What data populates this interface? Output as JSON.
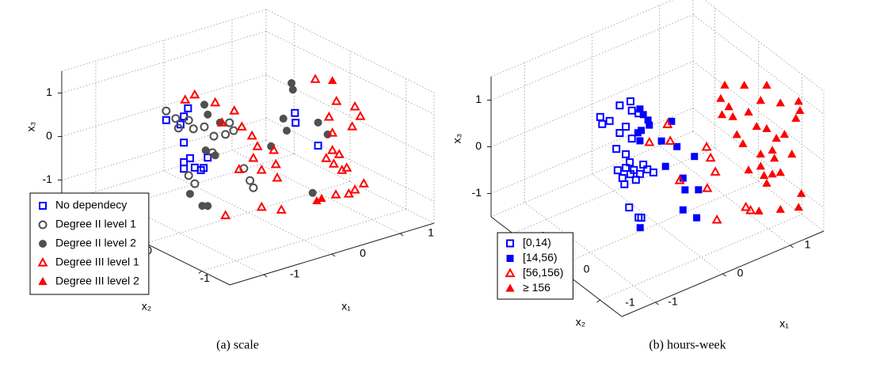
{
  "chart_data": [
    {
      "type": "scatter3d",
      "caption": "(a) scale",
      "xlabel": "x₁",
      "ylabel": "x₂",
      "zlabel": "x₃",
      "xlim": [
        -1.5,
        1.5
      ],
      "ylim": [
        -1.5,
        1.5
      ],
      "zlim": [
        -1.5,
        1.5
      ],
      "xticks": [
        -1,
        0,
        1
      ],
      "yticks": [
        -1,
        0,
        1
      ],
      "zticks": [
        -1,
        0,
        1
      ],
      "grid": true,
      "legend": "lower left",
      "series": [
        {
          "name": "No dependecy",
          "color": "#0000ff",
          "marker": "square",
          "filled": false,
          "x": [
            -1.2,
            -0.88,
            -0.94,
            -0.99,
            -0.94,
            -0.94,
            -0.85,
            -0.78,
            -0.65,
            -0.94,
            -0.59,
            -0.69,
            0.69,
            0.7,
            1.03
          ],
          "y": [
            0,
            0,
            0,
            0,
            0,
            0,
            0,
            0,
            0,
            0,
            0,
            0,
            0,
            0,
            0
          ],
          "z": [
            1.19,
            1.31,
            1.15,
            0.99,
            0.55,
            0.1,
            0.15,
            -0.1,
            -0.17,
            -0.05,
            0.04,
            -0.2,
            0.46,
            0.23,
            -0.45
          ]
        },
        {
          "name": "Degree II level 1",
          "color": "#505050",
          "marker": "circle",
          "filled": false,
          "x": [
            -1.2,
            -1.06,
            -0.87,
            -1.02,
            -0.8,
            -0.64,
            -0.5,
            -0.33,
            -0.27,
            -0.21,
            -0.52,
            -0.06,
            0.03,
            0.08,
            -0.87,
            -0.78
          ],
          "y": [
            0,
            0,
            0,
            0,
            0,
            0,
            0,
            0,
            0,
            0,
            0,
            0,
            0,
            0,
            0,
            0
          ],
          "z": [
            1.4,
            1.16,
            1.03,
            0.92,
            0.8,
            0.77,
            0.49,
            0.45,
            0.69,
            0.48,
            0.12,
            -0.46,
            -0.78,
            -0.97,
            -0.24,
            -0.47
          ]
        },
        {
          "name": "Degree II level 2",
          "color": "#505050",
          "marker": "circle",
          "filled": true,
          "x": [
            -0.64,
            -0.59,
            -0.41,
            -0.62,
            -0.48,
            -0.85,
            -0.67,
            -0.59,
            0.34,
            0.52,
            0.57,
            0.64,
            0.66,
            1.03,
            1.17,
            0.95
          ],
          "y": [
            0,
            0,
            0,
            0,
            0,
            0,
            0,
            0,
            0,
            0,
            0,
            0,
            0,
            0,
            0,
            0
          ],
          "z": [
            1.28,
            1.03,
            0.76,
            0.22,
            0.04,
            -0.67,
            -1.03,
            -1.07,
            -0.14,
            0.41,
            0.11,
            1.17,
            1.01,
            0.08,
            -0.26,
            -1.5
          ]
        },
        {
          "name": "Degree III level 1",
          "color": "#ff0000",
          "marker": "triangle",
          "filled": false,
          "x": [
            -0.51,
            -0.37,
            -0.48,
            -0.2,
            -0.38,
            -0.09,
            0.06,
            0.14,
            0.38,
            0.41,
            0.08,
            -0.13,
            0.2,
            0.43,
            -0.21,
            0.08,
            -0.74,
            1.4,
            1.3,
            1.16,
            1.24,
            1.19,
            1.12,
            1.24,
            1.34,
            1.15,
            0.97,
            1.07,
            1.29,
            0.88,
            1.24,
            1.26,
            1.04,
            1.16
          ],
          "y": [
            0.5,
            0.5,
            0,
            0,
            0,
            0,
            0,
            0,
            0,
            0,
            0,
            0,
            0,
            0,
            -0.5,
            -0.5,
            -0.5,
            0.5,
            0,
            -0.5,
            -0.5,
            0,
            -0.5,
            0,
            0,
            0,
            -0.5,
            -0.5,
            -0.5,
            -0.5,
            0,
            0,
            -0.5,
            -0.5
          ],
          "z": [
            1.01,
            1.06,
            1.25,
            0.93,
            0.74,
            0.51,
            0.23,
            -0.05,
            -0.25,
            -0.59,
            -0.29,
            -0.45,
            -0.62,
            -0.91,
            -0.96,
            -1.16,
            -0.9,
            0.58,
            0.44,
            0.7,
            0.44,
            0.13,
            0.26,
            -0.26,
            -0.8,
            -0.8,
            -0.67,
            -1.26,
            -1.13,
            -1.19,
            -0.66,
            -0.98,
            -0.65,
            -1.21
          ]
        },
        {
          "name": "Degree III level 2",
          "color": "#ff0000",
          "marker": "triangle",
          "filled": true,
          "x": [
            1.24,
            0.67,
            0.6
          ],
          "y": [
            0,
            -0.5,
            -0.5
          ],
          "z": [
            0.94,
            -1.18,
            -1.2
          ]
        }
      ]
    },
    {
      "type": "scatter3d",
      "caption": "(b) hours-week",
      "xlabel": "x₁",
      "ylabel": "x₂",
      "zlabel": "x₃",
      "xlim": [
        -1.5,
        1.5
      ],
      "ylim": [
        -1.5,
        1.5
      ],
      "zlim": [
        -1.5,
        1.5
      ],
      "xticks": [
        -1,
        0,
        1
      ],
      "yticks": [
        -1,
        0,
        1
      ],
      "zticks": [
        -1,
        0,
        1
      ],
      "grid": true,
      "legend": "lower left",
      "series": [
        {
          "name": "[0,14)",
          "color": "#0000ff",
          "marker": "square",
          "filled": false,
          "x": [
            -0.85,
            -0.82,
            -0.71,
            -0.56,
            -0.47,
            -0.4,
            -0.38,
            -0.28,
            -0.38,
            -0.47,
            -0.56,
            -0.59,
            -0.47,
            -0.4,
            -0.35,
            -0.41,
            -0.52,
            -0.49,
            -0.32,
            -0.26,
            -0.21,
            -0.15,
            -0.06,
            -0.42,
            -0.28,
            -0.24,
            -0.61
          ],
          "y": [
            0,
            0,
            0,
            0,
            0,
            0,
            0,
            0,
            0,
            0,
            0,
            0,
            0,
            0,
            0,
            0,
            0,
            0,
            0,
            0,
            0,
            0,
            0,
            0,
            0,
            0,
            0
          ],
          "z": [
            1.31,
            1.14,
            1.14,
            1.38,
            0.87,
            1.37,
            1.16,
            1.04,
            0.56,
            0.28,
            0.79,
            0.01,
            -0.01,
            -0.19,
            -0.13,
            0.07,
            -0.2,
            -0.35,
            -0.36,
            -0.27,
            -0.1,
            -0.24,
            -0.36,
            -0.89,
            -1.19,
            -1.22,
            0.48
          ]
        },
        {
          "name": "[14,56)",
          "color": "#0000ff",
          "marker": "square",
          "filled": true,
          "x": [
            -0.26,
            -0.21,
            -0.24,
            -0.29,
            -0.26,
            -0.12,
            -0.14,
            0.06,
            0.21,
            0.29,
            0.55,
            0.38,
            0.41,
            0.38,
            0.61,
            0.26,
            -0.58,
            0.12
          ],
          "y": [
            0,
            0,
            0,
            0,
            0,
            0,
            0,
            0,
            0,
            0,
            0,
            0,
            0,
            0,
            0,
            -0.5,
            -0.5,
            0
          ],
          "z": [
            1.12,
            0.97,
            0.65,
            0.63,
            0.44,
            0.69,
            0.81,
            0.24,
            0.57,
            -0.02,
            -0.39,
            -0.75,
            -1.02,
            -1.43,
            -1.14,
            -1.17,
            -0.87,
            -0.34
          ]
        },
        {
          "name": "[56,156)",
          "color": "#ff0000",
          "marker": "triangle",
          "filled": false,
          "x": [
            0.15,
            -0.12,
            0.19,
            0.73,
            0.79,
            0.86,
            0.33,
            0.74,
            0.56,
            0.99,
            1.06
          ],
          "y": [
            0,
            0,
            0,
            0,
            0,
            0,
            0,
            0,
            -0.5,
            -0.5,
            -0.5
          ],
          "z": [
            0.54,
            0.32,
            0.16,
            -0.3,
            -0.57,
            -0.91,
            -0.77,
            -1.19,
            -1.4,
            -1.39,
            -1.5
          ]
        },
        {
          "name": "≥ 156",
          "color": "#ff0000",
          "marker": "triangle",
          "filled": true,
          "x": [
            1.0,
            1.29,
            1.3,
            0.94,
            1.06,
            0.96,
            1.12,
            1.03,
            1.21,
            1.18,
            1.45,
            1.47,
            1.41,
            1.15,
            1.3,
            1.12,
            1.24,
            1.18,
            1.27,
            1.21,
            1.06,
            1.09,
            1.35,
            1.03,
            1.21,
            1.26,
            1.06,
            1.18,
            1.3,
            0.86,
            1.18,
            1.45,
            1.49
          ],
          "y": [
            0,
            0,
            -0.5,
            0,
            0,
            0,
            0,
            -0.5,
            -0.5,
            -1,
            -1,
            -1,
            -1,
            -0.5,
            -0.5,
            -1,
            -1,
            0,
            0,
            -0.5,
            -1,
            -1,
            -1,
            -0.5,
            -0.5,
            -0.5,
            -1,
            -1,
            -0.5,
            -1,
            -1,
            -1,
            -1
          ],
          "z": [
            0.86,
            0.68,
            1.03,
            0.61,
            0.36,
            0.25,
            0.11,
            0.62,
            0.76,
            1.08,
            0.95,
            0.74,
            0.61,
            0.24,
            0.1,
            0.36,
            0.37,
            -0.31,
            -0.56,
            -0.39,
            0.14,
            -0.05,
            -0.12,
            -0.62,
            -0.65,
            -0.88,
            -0.37,
            -0.41,
            -1.07,
            -1.04,
            -1.2,
            -1.32,
            -1.05
          ]
        }
      ]
    }
  ]
}
